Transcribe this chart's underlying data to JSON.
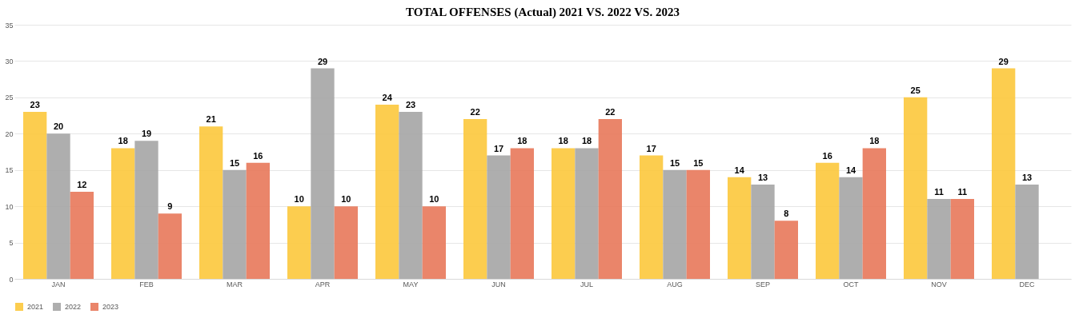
{
  "chart_data": {
    "type": "bar",
    "title": "TOTAL OFFENSES (Actual) 2021 VS. 2022 VS. 2023",
    "categories": [
      "JAN",
      "FEB",
      "MAR",
      "APR",
      "MAY",
      "JUN",
      "JUL",
      "AUG",
      "SEP",
      "OCT",
      "NOV",
      "DEC"
    ],
    "series": [
      {
        "name": "2021",
        "color": "#fcc83c",
        "values": [
          23,
          18,
          21,
          10,
          24,
          22,
          18,
          17,
          14,
          16,
          25,
          29
        ]
      },
      {
        "name": "2022",
        "color": "#a5a5a5",
        "values": [
          20,
          19,
          15,
          29,
          23,
          17,
          18,
          15,
          13,
          14,
          11,
          13
        ]
      },
      {
        "name": "2023",
        "color": "#e8785a",
        "values": [
          12,
          9,
          16,
          10,
          10,
          18,
          22,
          15,
          8,
          18,
          11,
          null
        ]
      }
    ],
    "ylim": [
      0,
      35
    ],
    "yticks": [
      0,
      5,
      10,
      15,
      20,
      25,
      30,
      35
    ],
    "grid": "y",
    "legend": "bottom",
    "data_labels": true
  }
}
